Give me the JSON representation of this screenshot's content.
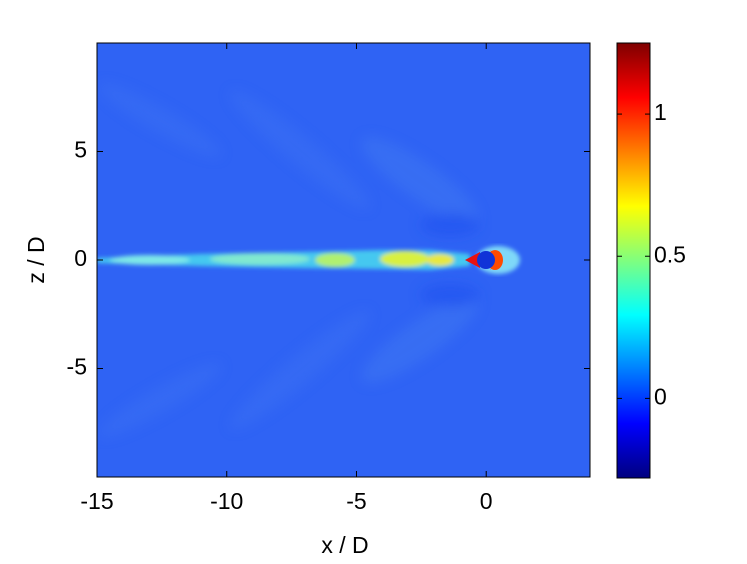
{
  "chart_data": {
    "type": "contour",
    "xlabel": "x / D",
    "ylabel": "z / D",
    "xlim": [
      -15,
      4
    ],
    "ylim": [
      -10,
      10
    ],
    "xticks": [
      -15,
      -10,
      -5,
      0
    ],
    "yticks": [
      -5,
      0,
      5
    ],
    "colormap": "jet",
    "colorbar": {
      "clim": [
        -0.28,
        1.25
      ],
      "ticks": [
        0,
        0.5,
        1
      ]
    }
  }
}
